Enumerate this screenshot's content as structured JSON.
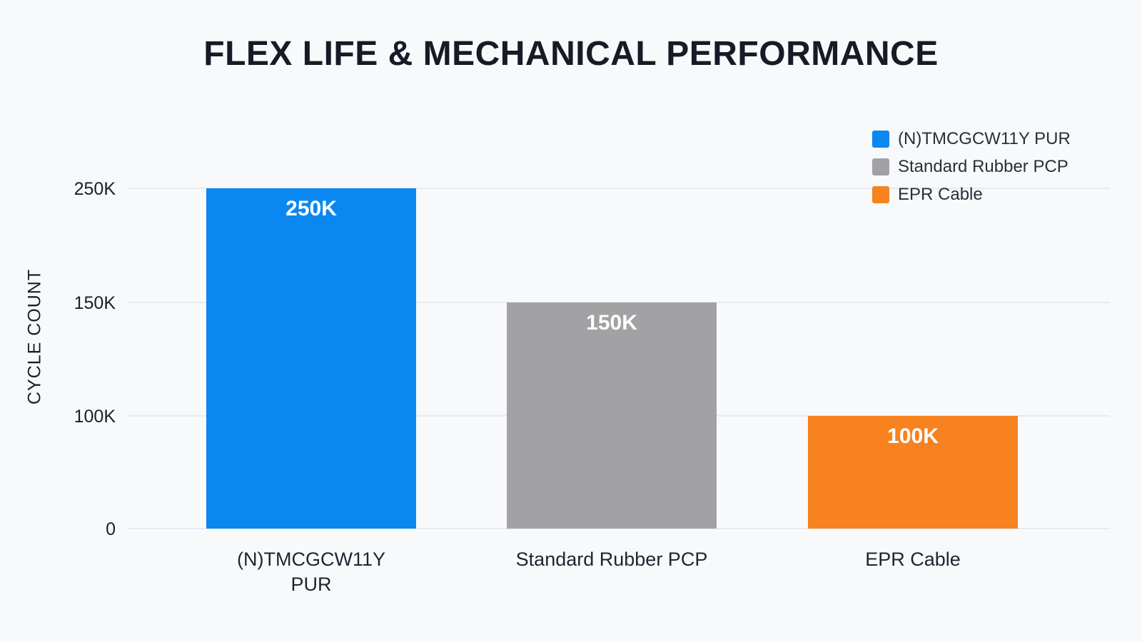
{
  "chart_data": {
    "type": "bar",
    "title": "FLEX LIFE & MECHANICAL PERFORMANCE",
    "ylabel": "CYCLE COUNT",
    "xlabel": "",
    "categories": [
      "(N)TMCGCW11Y PUR",
      "Standard Rubber PCP",
      "EPR Cable"
    ],
    "category_label_lines": [
      [
        "(N)TMCGCW11Y",
        "PUR"
      ],
      [
        "Standard Rubber PCP"
      ],
      [
        "EPR Cable"
      ]
    ],
    "values": [
      250000,
      150000,
      100000
    ],
    "value_labels": [
      "250K",
      "150K",
      "100K"
    ],
    "colors": [
      "#0a87f0",
      "#a2a2a5",
      "#f7821f"
    ],
    "y_ticks": [
      0,
      100000,
      150000,
      250000
    ],
    "y_tick_labels": [
      "0",
      "100K",
      "150K",
      "250K"
    ],
    "ylim": [
      0,
      250000
    ],
    "grid": true,
    "legend": {
      "position": "top-right",
      "entries": [
        "(N)TMCGCW11Y PUR",
        "Standard Rubber PCP",
        "EPR Cable"
      ]
    }
  }
}
